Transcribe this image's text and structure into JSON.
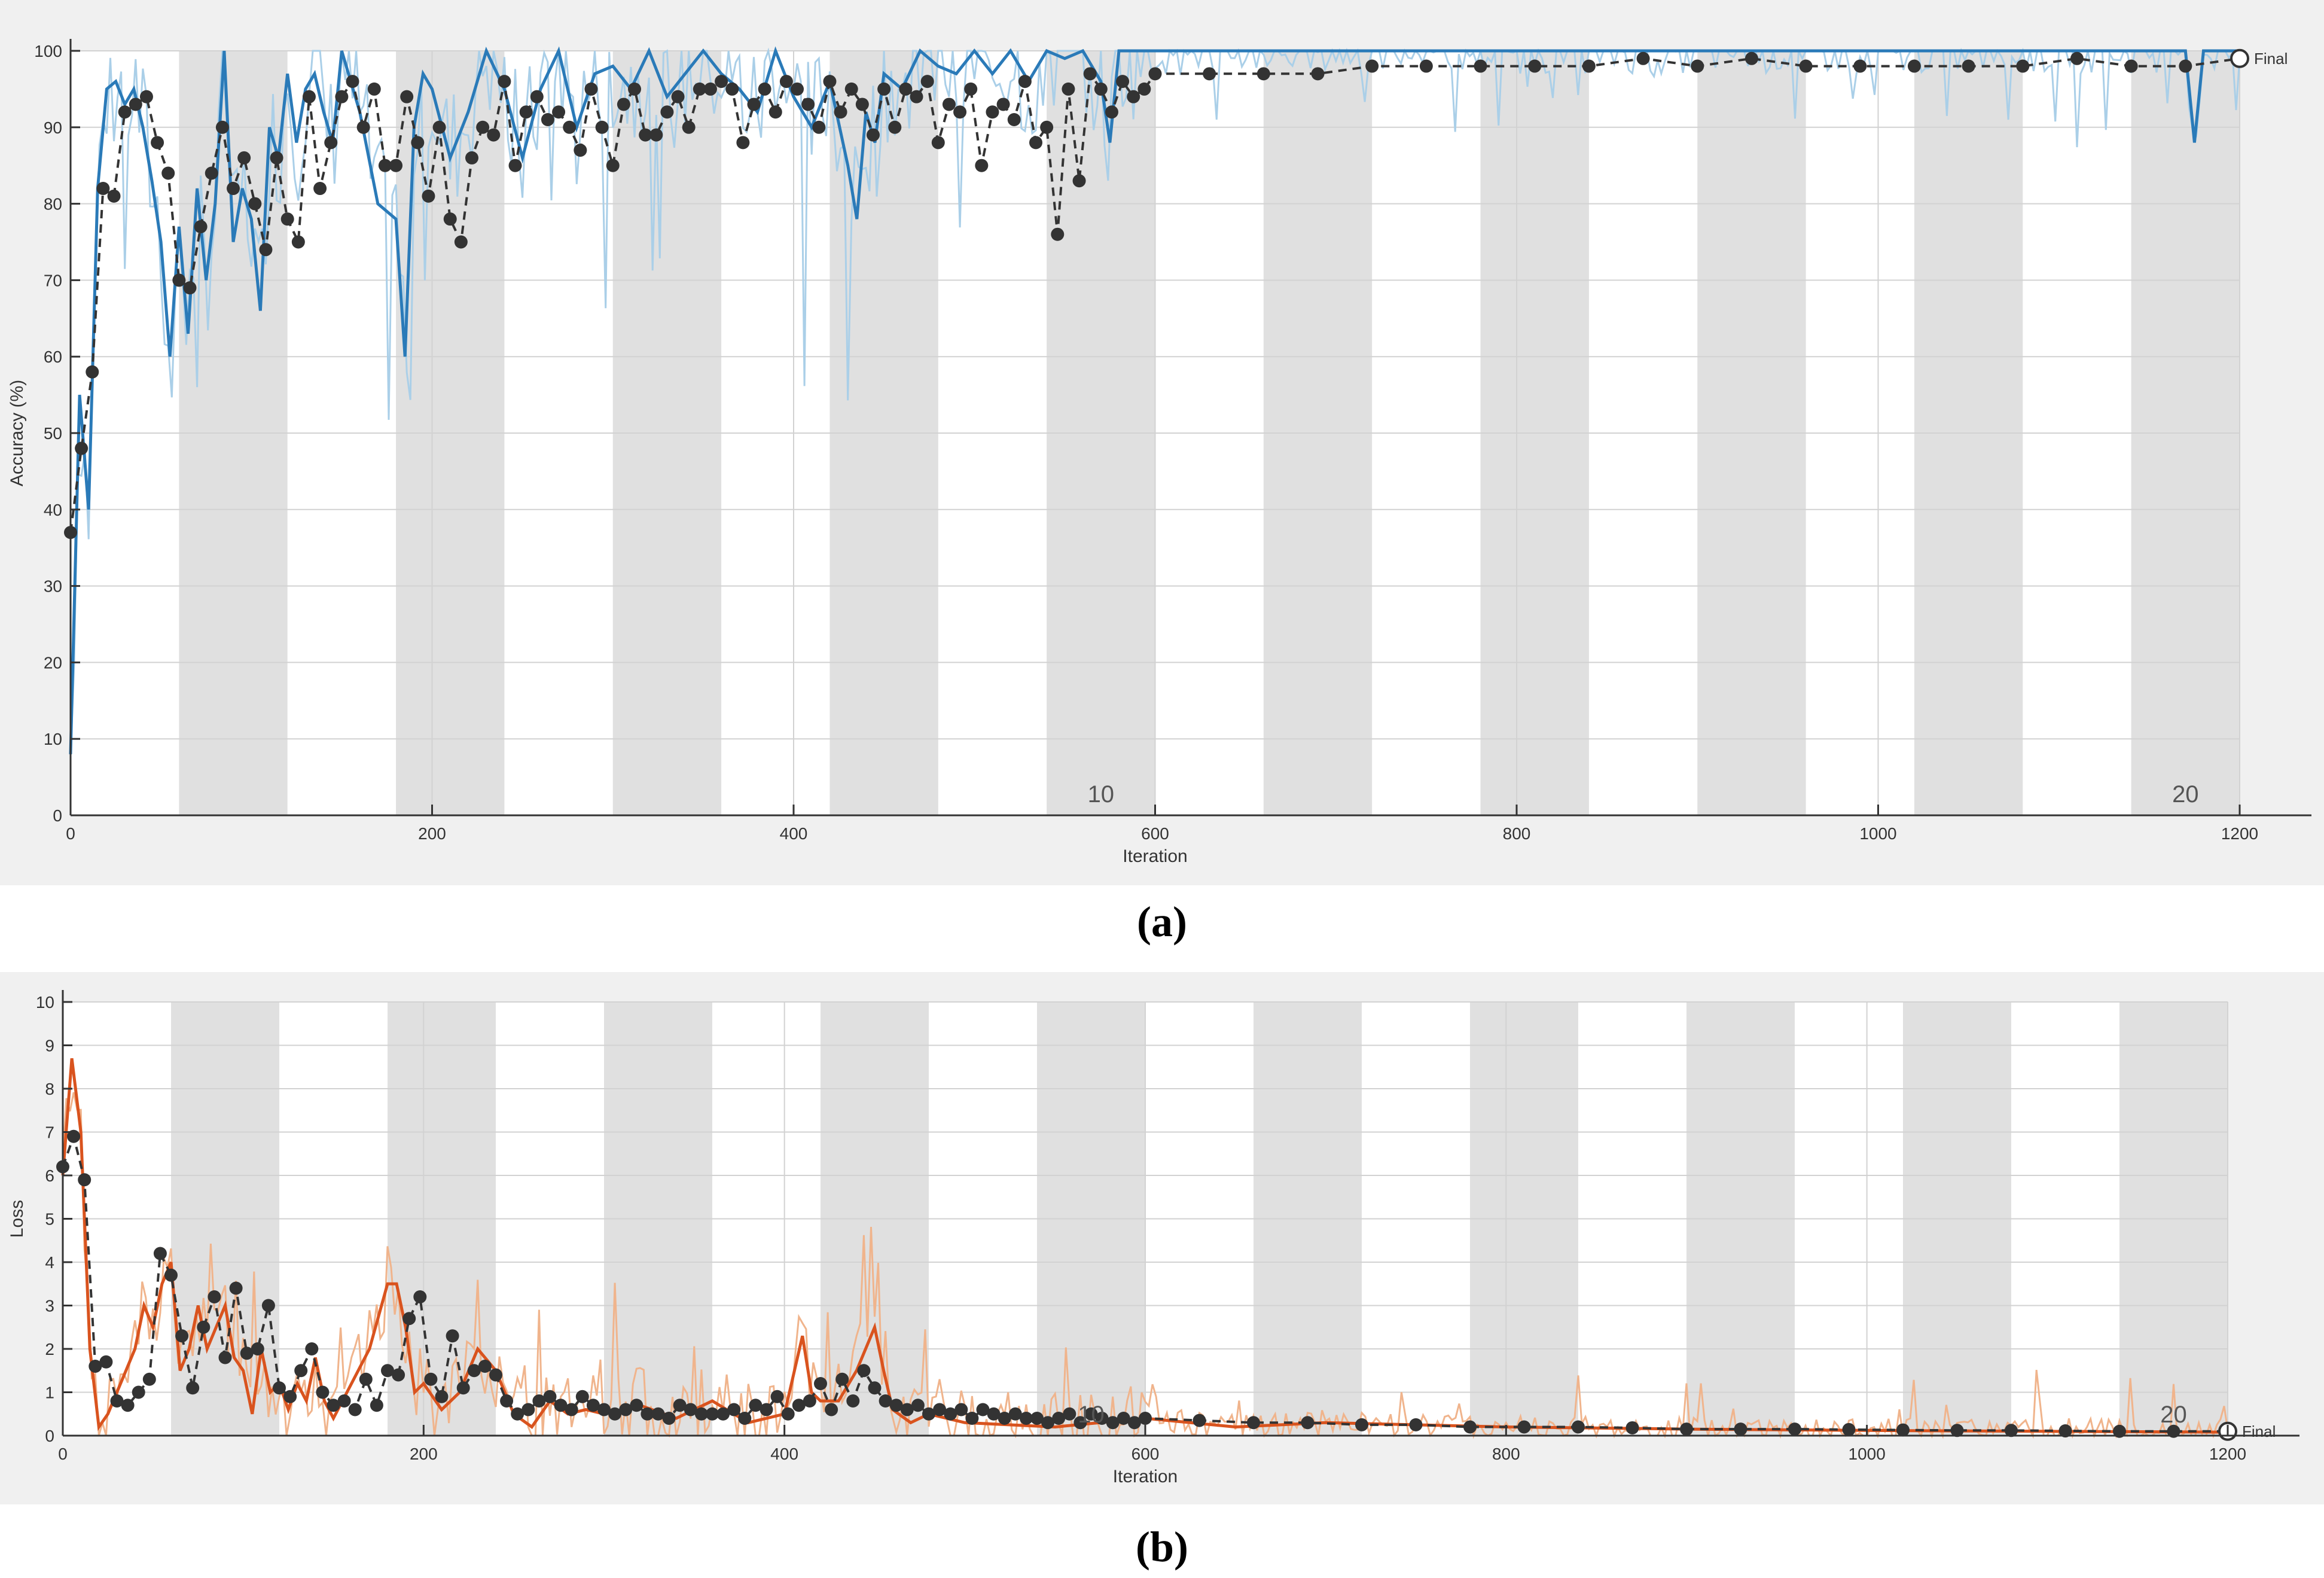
{
  "chart_data": [
    {
      "panel": "(a)",
      "type": "line",
      "xlabel": "Iteration",
      "ylabel": "Accuracy (%)",
      "xlim": [
        0,
        1200
      ],
      "ylim": [
        0,
        100
      ],
      "xticks": [
        0,
        200,
        400,
        600,
        800,
        1000,
        1200
      ],
      "yticks": [
        0,
        10,
        20,
        30,
        40,
        50,
        60,
        70,
        80,
        90,
        100
      ],
      "epochs": 20,
      "iterations_per_epoch": 60,
      "epoch_labels": [
        {
          "epoch": 10,
          "text": "10"
        },
        {
          "epoch": 20,
          "text": "20"
        }
      ],
      "final_label": "Final",
      "grid": true,
      "colors": {
        "raw": "#aacfe8",
        "smoothed": "#2a7ab8",
        "validation": "#333333",
        "shade": "#e0e0e0"
      },
      "series": [
        {
          "role": "smoothed-training",
          "x": [
            0,
            5,
            10,
            15,
            20,
            25,
            30,
            35,
            40,
            45,
            50,
            55,
            60,
            65,
            70,
            75,
            80,
            85,
            90,
            95,
            100,
            105,
            110,
            115,
            120,
            125,
            130,
            135,
            140,
            145,
            150,
            160,
            170,
            180,
            185,
            190,
            195,
            200,
            210,
            220,
            230,
            240,
            250,
            260,
            270,
            280,
            290,
            300,
            310,
            320,
            330,
            340,
            350,
            360,
            370,
            380,
            390,
            400,
            410,
            420,
            430,
            435,
            440,
            445,
            450,
            460,
            470,
            480,
            490,
            500,
            510,
            520,
            530,
            540,
            550,
            560,
            570,
            575,
            580,
            590,
            600,
            650,
            700,
            750,
            800,
            850,
            900,
            950,
            1000,
            1050,
            1100,
            1150,
            1170,
            1175,
            1180,
            1190,
            1200
          ],
          "y": [
            8,
            55,
            40,
            82,
            95,
            96,
            93,
            95,
            90,
            83,
            75,
            60,
            77,
            63,
            82,
            70,
            80,
            100,
            75,
            82,
            78,
            66,
            90,
            86,
            97,
            88,
            95,
            97,
            92,
            88,
            100,
            92,
            80,
            78,
            60,
            90,
            97,
            95,
            86,
            92,
            100,
            95,
            86,
            95,
            100,
            90,
            97,
            98,
            95,
            100,
            94,
            97,
            100,
            97,
            95,
            92,
            100,
            94,
            90,
            96,
            85,
            78,
            92,
            88,
            97,
            95,
            100,
            98,
            97,
            100,
            97,
            100,
            96,
            100,
            99,
            100,
            96,
            88,
            100,
            100,
            100,
            100,
            100,
            100,
            100,
            100,
            100,
            100,
            100,
            100,
            100,
            100,
            100,
            88,
            100,
            100,
            100
          ]
        },
        {
          "role": "validation",
          "x": [
            0,
            6,
            12,
            18,
            24,
            30,
            36,
            42,
            48,
            54,
            60,
            66,
            72,
            78,
            84,
            90,
            96,
            102,
            108,
            114,
            120,
            126,
            132,
            138,
            144,
            150,
            156,
            162,
            168,
            174,
            180,
            186,
            192,
            198,
            204,
            210,
            216,
            222,
            228,
            234,
            240,
            246,
            252,
            258,
            264,
            270,
            276,
            282,
            288,
            294,
            300,
            306,
            312,
            318,
            324,
            330,
            336,
            342,
            348,
            354,
            360,
            366,
            372,
            378,
            384,
            390,
            396,
            402,
            408,
            414,
            420,
            426,
            432,
            438,
            444,
            450,
            456,
            462,
            468,
            474,
            480,
            486,
            492,
            498,
            504,
            510,
            516,
            522,
            528,
            534,
            540,
            546,
            552,
            558,
            564,
            570,
            576,
            582,
            588,
            594,
            600,
            630,
            660,
            690,
            720,
            750,
            780,
            810,
            840,
            870,
            900,
            930,
            960,
            990,
            1020,
            1050,
            1080,
            1110,
            1140,
            1170,
            1200
          ],
          "y": [
            37,
            48,
            58,
            82,
            81,
            92,
            93,
            94,
            88,
            84,
            70,
            69,
            77,
            84,
            90,
            82,
            86,
            80,
            74,
            86,
            78,
            75,
            94,
            82,
            88,
            94,
            96,
            90,
            95,
            85,
            85,
            94,
            88,
            81,
            90,
            78,
            75,
            86,
            90,
            89,
            96,
            85,
            92,
            94,
            91,
            92,
            90,
            87,
            95,
            90,
            85,
            93,
            95,
            89,
            89,
            92,
            94,
            90,
            95,
            95,
            96,
            95,
            88,
            93,
            95,
            92,
            96,
            95,
            93,
            90,
            96,
            92,
            95,
            93,
            89,
            95,
            90,
            95,
            94,
            96,
            88,
            93,
            92,
            95,
            85,
            92,
            93,
            91,
            96,
            88,
            90,
            76,
            95,
            83,
            97,
            95,
            92,
            96,
            94,
            95,
            97,
            97,
            97,
            97,
            98,
            98,
            98,
            98,
            98,
            99,
            98,
            99,
            98,
            98,
            98,
            98,
            98,
            99,
            98,
            98,
            99
          ]
        }
      ]
    },
    {
      "panel": "(b)",
      "type": "line",
      "xlabel": "Iteration",
      "ylabel": "Loss",
      "xlim": [
        0,
        1200
      ],
      "ylim": [
        0,
        10
      ],
      "xticks": [
        0,
        200,
        400,
        600,
        800,
        1000,
        1200
      ],
      "yticks": [
        0,
        1,
        2,
        3,
        4,
        5,
        6,
        7,
        8,
        9,
        10
      ],
      "epochs": 20,
      "iterations_per_epoch": 60,
      "epoch_labels": [
        {
          "epoch": 10,
          "text": "10"
        },
        {
          "epoch": 20,
          "text": "20"
        }
      ],
      "final_label": "Final",
      "grid": true,
      "colors": {
        "raw": "#f0b48c",
        "smoothed": "#d9531e",
        "validation": "#333333",
        "shade": "#e0e0e0"
      },
      "series": [
        {
          "role": "smoothed-training",
          "x": [
            0,
            5,
            10,
            15,
            20,
            25,
            30,
            35,
            40,
            45,
            50,
            55,
            60,
            65,
            70,
            75,
            80,
            85,
            90,
            95,
            100,
            105,
            110,
            115,
            120,
            125,
            130,
            135,
            140,
            145,
            150,
            160,
            170,
            180,
            185,
            190,
            195,
            200,
            210,
            220,
            230,
            240,
            250,
            260,
            270,
            280,
            290,
            300,
            320,
            340,
            360,
            380,
            400,
            410,
            415,
            420,
            430,
            440,
            450,
            455,
            460,
            470,
            480,
            500,
            550,
            600,
            650,
            700,
            800,
            900,
            1000,
            1100,
            1200
          ],
          "y": [
            6,
            8.7,
            7,
            2,
            0.2,
            0.5,
            1,
            1.5,
            2,
            3,
            2.5,
            3.5,
            4,
            1.5,
            2,
            3,
            2,
            2.5,
            3,
            1.8,
            1.5,
            0.5,
            2,
            1,
            1.2,
            0.6,
            1.2,
            0.8,
            1.8,
            0.8,
            0.4,
            1.2,
            2,
            3.5,
            3.5,
            2.5,
            1,
            1.2,
            0.6,
            1,
            2,
            1.5,
            0.5,
            0.2,
            0.8,
            0.5,
            0.6,
            0.5,
            0.7,
            0.4,
            0.8,
            0.3,
            0.5,
            2.3,
            1,
            0.8,
            0.8,
            1.5,
            2.5,
            1.5,
            0.6,
            0.3,
            0.5,
            0.3,
            0.2,
            0.4,
            0.2,
            0.3,
            0.2,
            0.15,
            0.12,
            0.1,
            0.08
          ]
        },
        {
          "role": "validation",
          "x": [
            0,
            6,
            12,
            18,
            24,
            30,
            36,
            42,
            48,
            54,
            60,
            66,
            72,
            78,
            84,
            90,
            96,
            102,
            108,
            114,
            120,
            126,
            132,
            138,
            144,
            150,
            156,
            162,
            168,
            174,
            180,
            186,
            192,
            198,
            204,
            210,
            216,
            222,
            228,
            234,
            240,
            246,
            252,
            258,
            264,
            270,
            276,
            282,
            288,
            294,
            300,
            306,
            312,
            318,
            324,
            330,
            336,
            342,
            348,
            354,
            360,
            366,
            372,
            378,
            384,
            390,
            396,
            402,
            408,
            414,
            420,
            426,
            432,
            438,
            444,
            450,
            456,
            462,
            468,
            474,
            480,
            486,
            492,
            498,
            504,
            510,
            516,
            522,
            528,
            534,
            540,
            546,
            552,
            558,
            564,
            570,
            576,
            582,
            588,
            594,
            600,
            630,
            660,
            690,
            720,
            750,
            780,
            810,
            840,
            870,
            900,
            930,
            960,
            990,
            1020,
            1050,
            1080,
            1110,
            1140,
            1170,
            1200
          ],
          "y": [
            6.2,
            6.9,
            5.9,
            1.6,
            1.7,
            0.8,
            0.7,
            1.0,
            1.3,
            4.2,
            3.7,
            2.3,
            1.1,
            2.5,
            3.2,
            1.8,
            3.4,
            1.9,
            2.0,
            3.0,
            1.1,
            0.9,
            1.5,
            2.0,
            1.0,
            0.7,
            0.8,
            0.6,
            1.3,
            0.7,
            1.5,
            1.4,
            2.7,
            3.2,
            1.3,
            0.9,
            2.3,
            1.1,
            1.5,
            1.6,
            1.4,
            0.8,
            0.5,
            0.6,
            0.8,
            0.9,
            0.7,
            0.6,
            0.9,
            0.7,
            0.6,
            0.5,
            0.6,
            0.7,
            0.5,
            0.5,
            0.4,
            0.7,
            0.6,
            0.5,
            0.5,
            0.5,
            0.6,
            0.4,
            0.7,
            0.6,
            0.9,
            0.5,
            0.7,
            0.8,
            1.2,
            0.6,
            1.3,
            0.8,
            1.5,
            1.1,
            0.8,
            0.7,
            0.6,
            0.7,
            0.5,
            0.6,
            0.5,
            0.6,
            0.4,
            0.6,
            0.5,
            0.4,
            0.5,
            0.4,
            0.4,
            0.3,
            0.4,
            0.5,
            0.3,
            0.5,
            0.4,
            0.3,
            0.4,
            0.3,
            0.4,
            0.35,
            0.3,
            0.3,
            0.25,
            0.25,
            0.2,
            0.2,
            0.2,
            0.18,
            0.15,
            0.15,
            0.15,
            0.14,
            0.13,
            0.12,
            0.12,
            0.11,
            0.1,
            0.1,
            0.1
          ]
        }
      ]
    }
  ],
  "captions": {
    "a": "(a)",
    "b": "(b)"
  }
}
